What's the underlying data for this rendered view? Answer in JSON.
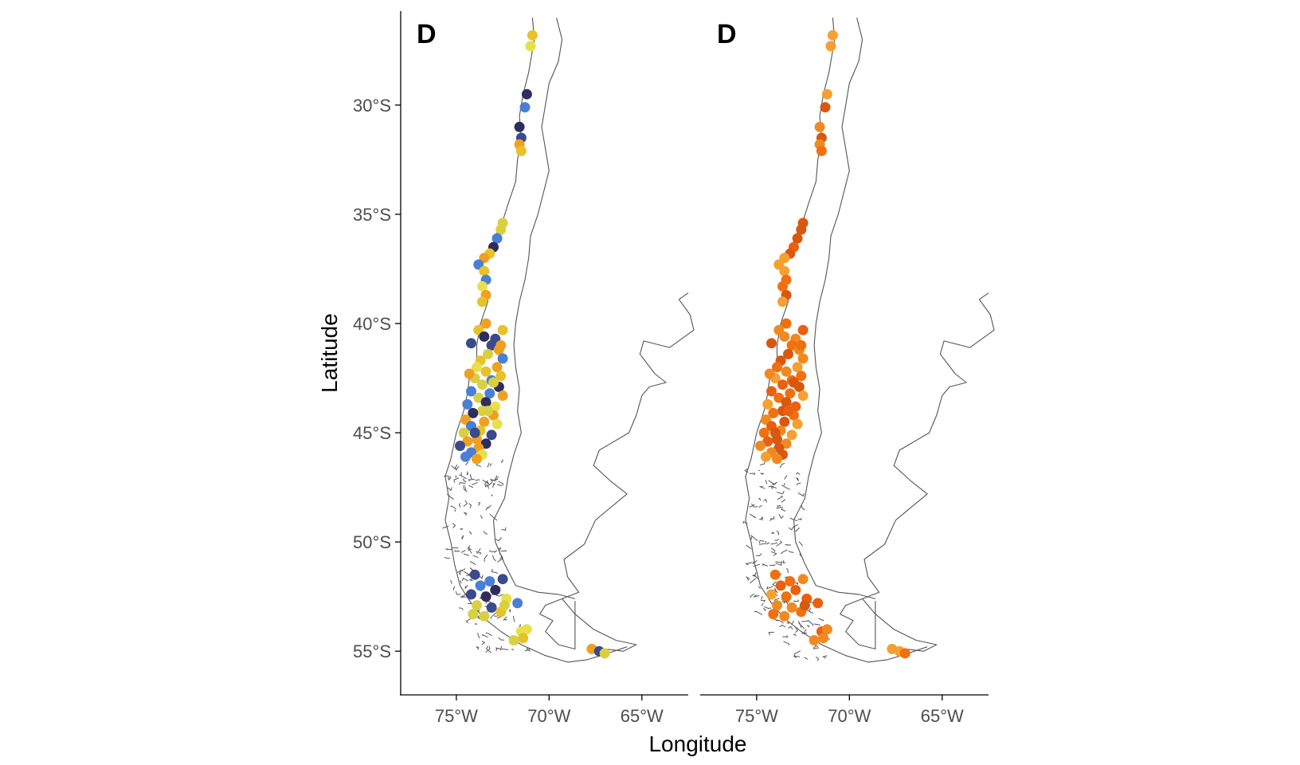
{
  "chart_data": [
    {
      "type": "scatter",
      "panel_label": "D",
      "xlabel": "Longitude",
      "ylabel": "Latitude",
      "xlim": [
        -78,
        -62.5
      ],
      "ylim": [
        -57,
        -25.7
      ],
      "x_ticks": [
        "75°W",
        "70°W",
        "65°W"
      ],
      "x_tick_values": [
        -75,
        -70,
        -65
      ],
      "y_ticks": [
        "30°S",
        "35°S",
        "40°S",
        "45°S",
        "50°S",
        "55°S"
      ],
      "y_tick_values": [
        -30,
        -35,
        -40,
        -45,
        -50,
        -55
      ],
      "legend": "none",
      "grid": false,
      "palette": [
        "#3b4a8c",
        "#2e2d5e",
        "#4a7fd6",
        "#e8c22a",
        "#e8e04a",
        "#f0a020",
        "#d8d040"
      ],
      "points_lonlat": [
        [
          -70.9,
          -26.8
        ],
        [
          -71.0,
          -27.3
        ],
        [
          -71.2,
          -29.5
        ],
        [
          -71.3,
          -30.1
        ],
        [
          -71.6,
          -31.0
        ],
        [
          -71.5,
          -31.5
        ],
        [
          -71.6,
          -31.8
        ],
        [
          -71.5,
          -32.1
        ],
        [
          -72.5,
          -35.4
        ],
        [
          -72.6,
          -35.7
        ],
        [
          -72.8,
          -36.1
        ],
        [
          -73.0,
          -36.5
        ],
        [
          -73.2,
          -36.8
        ],
        [
          -73.5,
          -37.0
        ],
        [
          -73.8,
          -37.3
        ],
        [
          -73.5,
          -37.6
        ],
        [
          -73.4,
          -38.0
        ],
        [
          -73.6,
          -38.3
        ],
        [
          -73.4,
          -38.7
        ],
        [
          -73.6,
          -39.0
        ],
        [
          -73.4,
          -40.0
        ],
        [
          -73.8,
          -40.3
        ],
        [
          -72.5,
          -40.3
        ],
        [
          -72.9,
          -40.7
        ],
        [
          -74.2,
          -40.9
        ],
        [
          -73.1,
          -41.0
        ],
        [
          -72.7,
          -41.2
        ],
        [
          -73.3,
          -41.4
        ],
        [
          -72.5,
          -41.6
        ],
        [
          -73.7,
          -41.7
        ],
        [
          -73.9,
          -42.0
        ],
        [
          -72.8,
          -42.0
        ],
        [
          -73.4,
          -42.2
        ],
        [
          -72.6,
          -42.4
        ],
        [
          -74.0,
          -42.5
        ],
        [
          -73.1,
          -42.6
        ],
        [
          -73.6,
          -42.8
        ],
        [
          -72.7,
          -42.9
        ],
        [
          -74.2,
          -43.1
        ],
        [
          -73.2,
          -43.2
        ],
        [
          -72.5,
          -43.3
        ],
        [
          -73.8,
          -43.4
        ],
        [
          -73.4,
          -43.6
        ],
        [
          -74.4,
          -43.7
        ],
        [
          -72.9,
          -43.8
        ],
        [
          -73.6,
          -44.0
        ],
        [
          -74.1,
          -44.1
        ],
        [
          -73.0,
          -44.2
        ],
        [
          -74.5,
          -44.4
        ],
        [
          -73.5,
          -44.5
        ],
        [
          -72.8,
          -44.6
        ],
        [
          -74.2,
          -44.7
        ],
        [
          -73.7,
          -44.9
        ],
        [
          -74.6,
          -45.0
        ],
        [
          -73.1,
          -45.1
        ],
        [
          -73.9,
          -45.3
        ],
        [
          -74.4,
          -45.4
        ],
        [
          -73.4,
          -45.5
        ],
        [
          -74.8,
          -45.6
        ],
        [
          -73.8,
          -45.7
        ],
        [
          -74.2,
          -45.9
        ],
        [
          -73.6,
          -46.0
        ],
        [
          -74.5,
          -46.1
        ],
        [
          -73.9,
          -46.2
        ],
        [
          -74.0,
          -45.0
        ],
        [
          -73.3,
          -44.0
        ],
        [
          -73.0,
          -42.7
        ],
        [
          -74.3,
          -42.3
        ],
        [
          -72.6,
          -41.0
        ],
        [
          -73.5,
          -40.6
        ],
        [
          -74.0,
          -51.5
        ],
        [
          -73.2,
          -51.8
        ],
        [
          -72.5,
          -51.7
        ],
        [
          -73.7,
          -52.0
        ],
        [
          -72.9,
          -52.2
        ],
        [
          -74.2,
          -52.4
        ],
        [
          -73.4,
          -52.5
        ],
        [
          -72.3,
          -52.6
        ],
        [
          -71.7,
          -52.8
        ],
        [
          -73.9,
          -52.9
        ],
        [
          -73.1,
          -53.0
        ],
        [
          -72.6,
          -53.2
        ],
        [
          -74.1,
          -53.3
        ],
        [
          -73.5,
          -53.4
        ],
        [
          -72.4,
          -52.9
        ],
        [
          -71.5,
          -54.1
        ],
        [
          -71.2,
          -54.0
        ],
        [
          -71.9,
          -54.5
        ],
        [
          -71.4,
          -54.4
        ],
        [
          -67.7,
          -54.9
        ],
        [
          -67.3,
          -55.0
        ],
        [
          -67.0,
          -55.1
        ]
      ]
    },
    {
      "type": "scatter",
      "panel_label": "D",
      "xlim": [
        -78,
        -62.5
      ],
      "ylim": [
        -57,
        -25.7
      ],
      "x_ticks": [
        "75°W",
        "70°W",
        "65°W"
      ],
      "x_tick_values": [
        -75,
        -70,
        -65
      ],
      "legend": "none",
      "grid": false,
      "palette": [
        "#f07010",
        "#e86010",
        "#f08a20",
        "#d85810",
        "#f5a030"
      ],
      "points_lonlat": "same locations as left panel"
    }
  ]
}
